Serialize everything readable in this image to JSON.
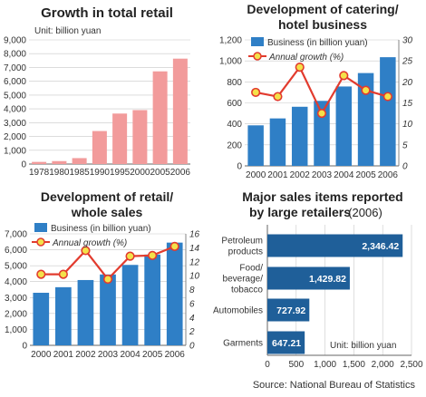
{
  "source": "Source: National Bureau of Statistics",
  "colors": {
    "pink": "#f29b9b",
    "blue": "#2f7fc6",
    "navy": "#1f5f99",
    "red": "#e23b2e",
    "yellow": "#f4e14a",
    "grid": "#c8c8c8",
    "axis": "#666666"
  },
  "chart_data": [
    {
      "id": "retail",
      "type": "bar",
      "title": "Growth in total retail",
      "unit": "Unit: billion yuan",
      "categories": [
        "1978",
        "1980",
        "1985",
        "1990",
        "1995",
        "2000",
        "2005",
        "2006"
      ],
      "values": [
        156,
        214,
        430,
        2393,
        3661,
        3911,
        6718,
        7640
      ],
      "ylim": [
        0,
        9000
      ],
      "yticks": [
        0,
        1000,
        2000,
        3000,
        4000,
        5000,
        6000,
        7000,
        8000,
        9000
      ],
      "grid": true
    },
    {
      "id": "catering",
      "type": "bar+line",
      "title": [
        "Development of catering/",
        "hotel business"
      ],
      "categories": [
        "2000",
        "2001",
        "2002",
        "2003",
        "2004",
        "2005",
        "2006"
      ],
      "legend": [
        "Business (in billion yuan)",
        "Annual growth (%)"
      ],
      "series": [
        {
          "name": "Business (in billion yuan)",
          "kind": "bar",
          "axis": "left",
          "values": [
            386,
            452,
            563,
            619,
            756,
            884,
            1035
          ]
        },
        {
          "name": "Annual growth (%)",
          "kind": "line",
          "axis": "right",
          "values": [
            17.5,
            16.5,
            23.5,
            12.5,
            21.5,
            18,
            16.5
          ]
        }
      ],
      "ylim_left": [
        0,
        1200
      ],
      "yticks_left": [
        0,
        200,
        400,
        600,
        800,
        1000,
        1200
      ],
      "ylim_right": [
        0,
        30
      ],
      "yticks_right": [
        0,
        5,
        10,
        15,
        20,
        25,
        30
      ],
      "grid": true
    },
    {
      "id": "wholesale",
      "type": "bar+line",
      "title": [
        "Development of retail/",
        "whole sales"
      ],
      "categories": [
        "2000",
        "2001",
        "2002",
        "2003",
        "2004",
        "2005",
        "2006"
      ],
      "legend": [
        "Business (in billion yuan)",
        "Annual growth (%)"
      ],
      "series": [
        {
          "name": "Business (in billion yuan)",
          "kind": "bar",
          "axis": "left",
          "values": [
            3300,
            3650,
            4100,
            4450,
            5050,
            5700,
            6450
          ]
        },
        {
          "name": "Annual growth (%)",
          "kind": "line",
          "axis": "right",
          "values": [
            10.2,
            10.2,
            13.6,
            9.5,
            12.8,
            12.9,
            14.2
          ]
        }
      ],
      "ylim_left": [
        0,
        7000
      ],
      "yticks_left": [
        0,
        1000,
        2000,
        3000,
        4000,
        5000,
        6000,
        7000
      ],
      "ylim_right": [
        0,
        16
      ],
      "yticks_right": [
        0,
        2,
        4,
        6,
        8,
        10,
        12,
        14,
        16
      ],
      "grid": true
    },
    {
      "id": "sales",
      "type": "hbar",
      "title": [
        "Major sales items reported",
        "by large retailers"
      ],
      "title_suffix": "(2006)",
      "unit": "Unit: billion yuan",
      "categories": [
        [
          "Petroleum",
          "products"
        ],
        [
          "Food/",
          "beverage/",
          "tobacco"
        ],
        [
          "Automobiles"
        ],
        [
          "Garments"
        ]
      ],
      "values": [
        2346.42,
        1429.82,
        727.92,
        647.21
      ],
      "value_labels": [
        "2,346.42",
        "1,429.82",
        "727.92",
        "647.21"
      ],
      "xlim": [
        0,
        2500
      ],
      "xticks": [
        0,
        500,
        1000,
        1500,
        2000,
        2500
      ],
      "xtick_labels": [
        "0",
        "500",
        "1,000",
        "1,500",
        "2,000",
        "2,500"
      ],
      "grid": true
    }
  ]
}
